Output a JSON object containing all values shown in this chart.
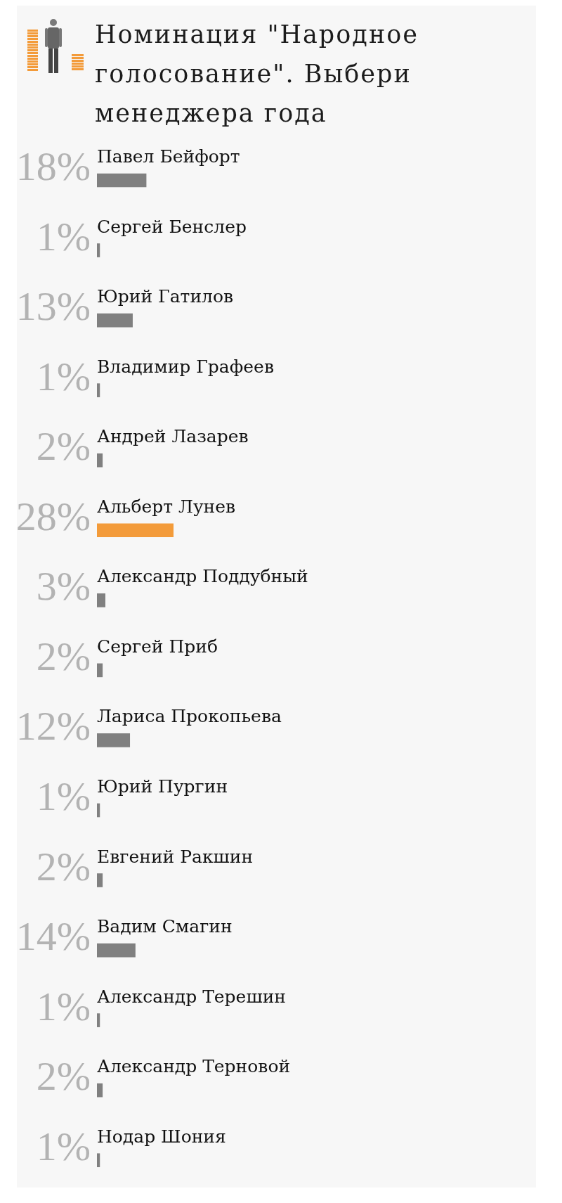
{
  "chart_data": {
    "type": "bar",
    "orientation": "horizontal",
    "title": "Номинация \"Народное голосование\". Выбери менеджера года",
    "categories": [
      "Павел Бейфорт",
      "Сергей Бенслер",
      "Юрий Гатилов",
      "Владимир Графеев",
      "Андрей Лазарев",
      "Альберт Лунев",
      "Александр Поддубный",
      "Сергей Приб",
      "Лариса Прокопьева",
      "Юрий Пургин",
      "Евгений Ракшин",
      "Вадим Смагин",
      "Александр Терешин",
      "Александр Терновой",
      "Нодар Шония"
    ],
    "values": [
      18,
      1,
      13,
      1,
      2,
      28,
      3,
      2,
      12,
      1,
      2,
      14,
      1,
      2,
      1
    ],
    "value_labels": [
      "18%",
      "1%",
      "13%",
      "1%",
      "2%",
      "28%",
      "3%",
      "2%",
      "12%",
      "1%",
      "2%",
      "14%",
      "1%",
      "2%",
      "1%"
    ],
    "colors": [
      "#808080",
      "#808080",
      "#808080",
      "#808080",
      "#808080",
      "#f39b3a",
      "#808080",
      "#808080",
      "#808080",
      "#808080",
      "#808080",
      "#808080",
      "#808080",
      "#808080",
      "#808080"
    ]
  }
}
